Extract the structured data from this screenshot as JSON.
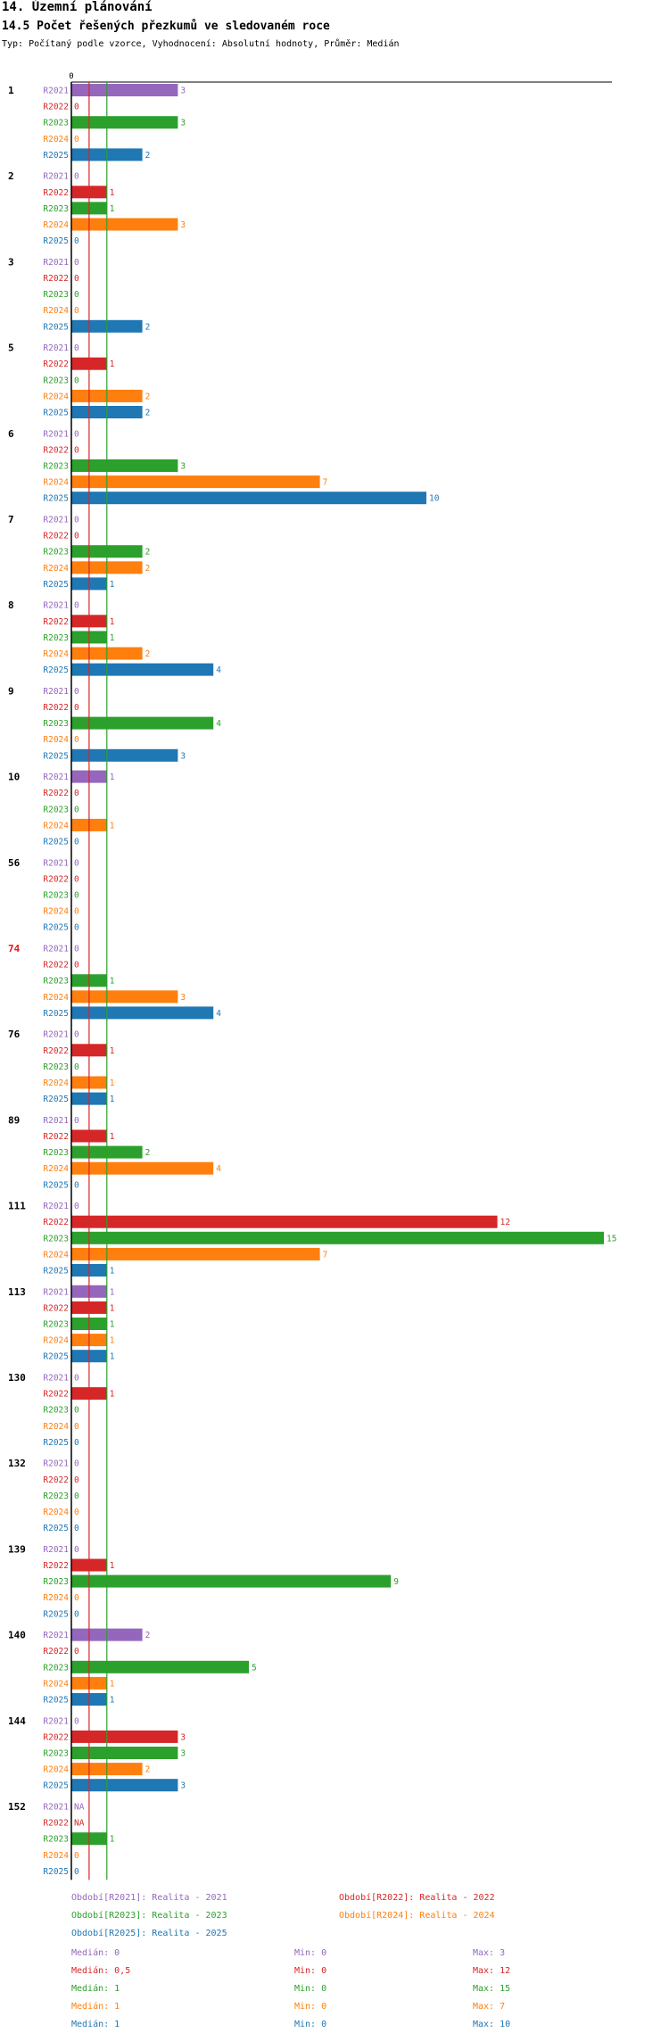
{
  "header": {
    "title": "14. Územní plánování",
    "subtitle": "14.5 Počet řešených přezkumů ve sledovaném roce",
    "meta": "Typ: Počítaný podle vzorce, Vyhodnocení: Absolutní hodnoty, Průměr: Medián"
  },
  "chart_data": {
    "type": "bar",
    "orientation": "horizontal",
    "x_tick_labels": [
      "0"
    ],
    "median_lines": "vertical lines at the median of each series",
    "series_names": [
      "R2021",
      "R2022",
      "R2023",
      "R2024",
      "R2025"
    ],
    "colors": {
      "R2021": "#9467bd",
      "R2022": "#d62728",
      "R2023": "#2ca02c",
      "R2024": "#ff7f0e",
      "R2025": "#1f77b4"
    },
    "groups": [
      {
        "label": "1",
        "highlight": false,
        "values": [
          3,
          0,
          3,
          0,
          2
        ]
      },
      {
        "label": "2",
        "highlight": false,
        "values": [
          0,
          1,
          1,
          3,
          0
        ]
      },
      {
        "label": "3",
        "highlight": false,
        "values": [
          0,
          0,
          0,
          0,
          2
        ]
      },
      {
        "label": "5",
        "highlight": false,
        "values": [
          0,
          1,
          0,
          2,
          2
        ]
      },
      {
        "label": "6",
        "highlight": false,
        "values": [
          0,
          0,
          3,
          7,
          10
        ]
      },
      {
        "label": "7",
        "highlight": false,
        "values": [
          0,
          0,
          2,
          2,
          1
        ]
      },
      {
        "label": "8",
        "highlight": false,
        "values": [
          0,
          1,
          1,
          2,
          4
        ]
      },
      {
        "label": "9",
        "highlight": false,
        "values": [
          0,
          0,
          4,
          0,
          3
        ]
      },
      {
        "label": "10",
        "highlight": false,
        "values": [
          1,
          0,
          0,
          1,
          0
        ]
      },
      {
        "label": "56",
        "highlight": false,
        "values": [
          0,
          0,
          0,
          0,
          0
        ]
      },
      {
        "label": "74",
        "highlight": true,
        "values": [
          0,
          0,
          1,
          3,
          4
        ]
      },
      {
        "label": "76",
        "highlight": false,
        "values": [
          0,
          1,
          0,
          1,
          1
        ]
      },
      {
        "label": "89",
        "highlight": false,
        "values": [
          0,
          1,
          2,
          4,
          0
        ]
      },
      {
        "label": "111",
        "highlight": false,
        "values": [
          0,
          12,
          15,
          7,
          1
        ]
      },
      {
        "label": "113",
        "highlight": false,
        "values": [
          1,
          1,
          1,
          1,
          1
        ]
      },
      {
        "label": "130",
        "highlight": false,
        "values": [
          0,
          1,
          0,
          0,
          0
        ]
      },
      {
        "label": "132",
        "highlight": false,
        "values": [
          0,
          0,
          0,
          0,
          0
        ]
      },
      {
        "label": "139",
        "highlight": false,
        "values": [
          0,
          1,
          9,
          0,
          0
        ]
      },
      {
        "label": "140",
        "highlight": false,
        "values": [
          2,
          0,
          5,
          1,
          1
        ]
      },
      {
        "label": "144",
        "highlight": false,
        "values": [
          0,
          3,
          3,
          2,
          3
        ]
      },
      {
        "label": "152",
        "highlight": false,
        "values": [
          "NA",
          "NA",
          1,
          0,
          0
        ]
      }
    ],
    "medians": [
      0,
      0.5,
      1,
      1,
      1
    ]
  },
  "legend": {
    "periods": [
      "Období[R2021]: Realita - 2021",
      "Období[R2022]: Realita - 2022",
      "Období[R2023]: Realita - 2023",
      "Období[R2024]: Realita - 2024",
      "Období[R2025]: Realita - 2025"
    ],
    "stats": [
      {
        "median": "Medián: 0",
        "min": "Min: 0",
        "max": "Max: 3"
      },
      {
        "median": "Medián: 0,5",
        "min": "Min: 0",
        "max": "Max: 12"
      },
      {
        "median": "Medián: 1",
        "min": "Min: 0",
        "max": "Max: 15"
      },
      {
        "median": "Medián: 1",
        "min": "Min: 0",
        "max": "Max: 7"
      },
      {
        "median": "Medián: 1",
        "min": "Min: 0",
        "max": "Max: 10"
      }
    ]
  }
}
